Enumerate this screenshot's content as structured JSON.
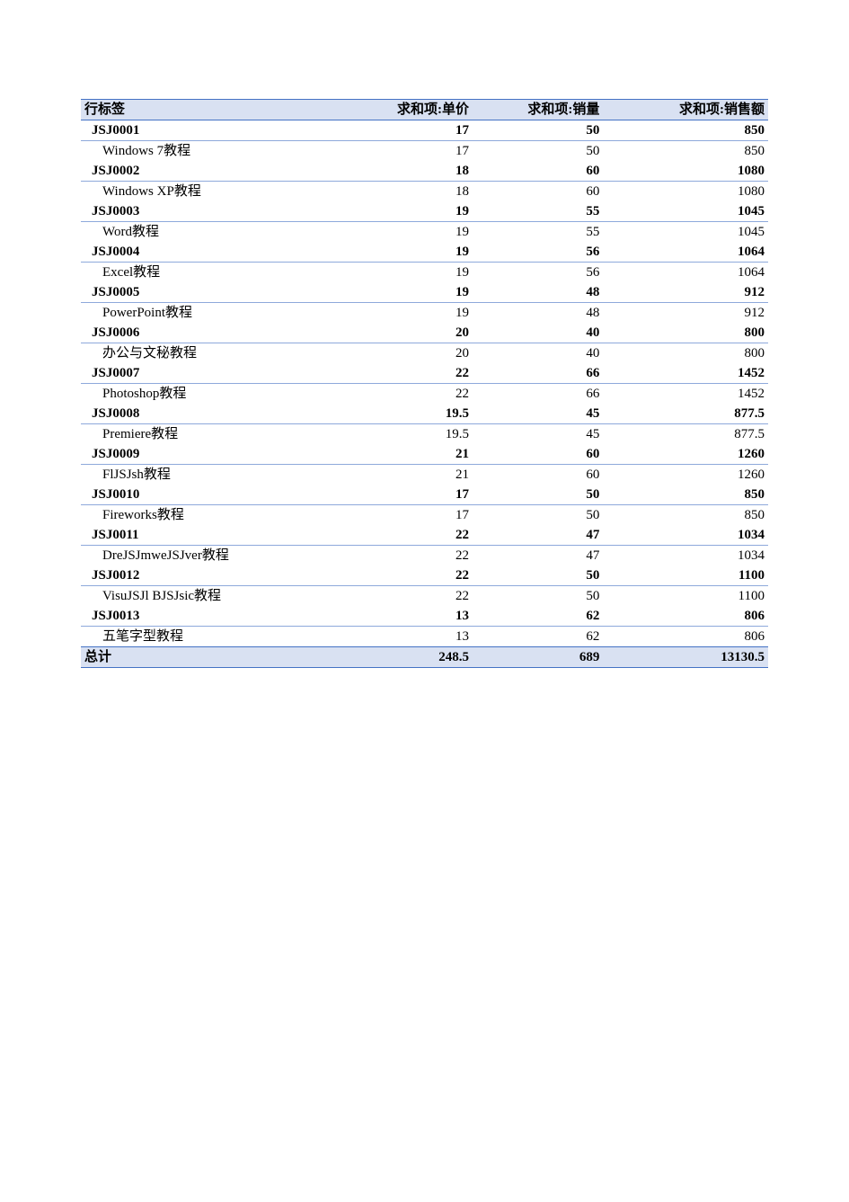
{
  "pivot": {
    "type": "table",
    "header_bg": "#d9e1f2",
    "border_color": "#4472c4",
    "group_border_color": "#8ea9db",
    "background_color": "#ffffff",
    "font_family": "SimSun",
    "header_fontsize": 15,
    "row_fontsize": 15,
    "columns": {
      "c0": {
        "label": "行标签",
        "align": "left",
        "width_pct": 36
      },
      "c1": {
        "label": "求和项:单价",
        "align": "right",
        "width_pct": 21
      },
      "c2": {
        "label": "求和项:销量",
        "align": "right",
        "width_pct": 19
      },
      "c3": {
        "label": "求和项:销售额",
        "align": "right",
        "width_pct": 24
      }
    },
    "rows": [
      {
        "type": "grp",
        "c0": "JSJ0001",
        "c1": "17",
        "c2": "50",
        "c3": "850"
      },
      {
        "type": "det",
        "c0": "Windows 7教程",
        "c1": "17",
        "c2": "50",
        "c3": "850"
      },
      {
        "type": "grp",
        "c0": "JSJ0002",
        "c1": "18",
        "c2": "60",
        "c3": "1080"
      },
      {
        "type": "det",
        "c0": "Windows XP教程",
        "c1": "18",
        "c2": "60",
        "c3": "1080"
      },
      {
        "type": "grp",
        "c0": "JSJ0003",
        "c1": "19",
        "c2": "55",
        "c3": "1045"
      },
      {
        "type": "det",
        "c0": "Word教程",
        "c1": "19",
        "c2": "55",
        "c3": "1045"
      },
      {
        "type": "grp",
        "c0": "JSJ0004",
        "c1": "19",
        "c2": "56",
        "c3": "1064"
      },
      {
        "type": "det",
        "c0": "Excel教程",
        "c1": "19",
        "c2": "56",
        "c3": "1064"
      },
      {
        "type": "grp",
        "c0": "JSJ0005",
        "c1": "19",
        "c2": "48",
        "c3": "912"
      },
      {
        "type": "det",
        "c0": "PowerPoint教程",
        "c1": "19",
        "c2": "48",
        "c3": "912"
      },
      {
        "type": "grp",
        "c0": "JSJ0006",
        "c1": "20",
        "c2": "40",
        "c3": "800"
      },
      {
        "type": "det",
        "c0": "办公与文秘教程",
        "c1": "20",
        "c2": "40",
        "c3": "800"
      },
      {
        "type": "grp",
        "c0": "JSJ0007",
        "c1": "22",
        "c2": "66",
        "c3": "1452"
      },
      {
        "type": "det",
        "c0": "Photoshop教程",
        "c1": "22",
        "c2": "66",
        "c3": "1452"
      },
      {
        "type": "grp",
        "c0": "JSJ0008",
        "c1": "19.5",
        "c2": "45",
        "c3": "877.5"
      },
      {
        "type": "det",
        "c0": "Premiere教程",
        "c1": "19.5",
        "c2": "45",
        "c3": "877.5"
      },
      {
        "type": "grp",
        "c0": "JSJ0009",
        "c1": "21",
        "c2": "60",
        "c3": "1260"
      },
      {
        "type": "det",
        "c0": "FlJSJsh教程",
        "c1": "21",
        "c2": "60",
        "c3": "1260"
      },
      {
        "type": "grp",
        "c0": "JSJ0010",
        "c1": "17",
        "c2": "50",
        "c3": "850"
      },
      {
        "type": "det",
        "c0": "Fireworks教程",
        "c1": "17",
        "c2": "50",
        "c3": "850"
      },
      {
        "type": "grp",
        "c0": "JSJ0011",
        "c1": "22",
        "c2": "47",
        "c3": "1034"
      },
      {
        "type": "det",
        "c0": "DreJSJmweJSJver教程",
        "c1": "22",
        "c2": "47",
        "c3": "1034"
      },
      {
        "type": "grp",
        "c0": "JSJ0012",
        "c1": "22",
        "c2": "50",
        "c3": "1100"
      },
      {
        "type": "det",
        "c0": "VisuJSJl BJSJsic教程",
        "c1": "22",
        "c2": "50",
        "c3": "1100"
      },
      {
        "type": "grp",
        "c0": "JSJ0013",
        "c1": "13",
        "c2": "62",
        "c3": "806"
      },
      {
        "type": "det",
        "c0": "五笔字型教程",
        "c1": "13",
        "c2": "62",
        "c3": "806"
      }
    ],
    "footer": {
      "c0": "总计",
      "c1": "248.5",
      "c2": "689",
      "c3": "13130.5"
    }
  }
}
